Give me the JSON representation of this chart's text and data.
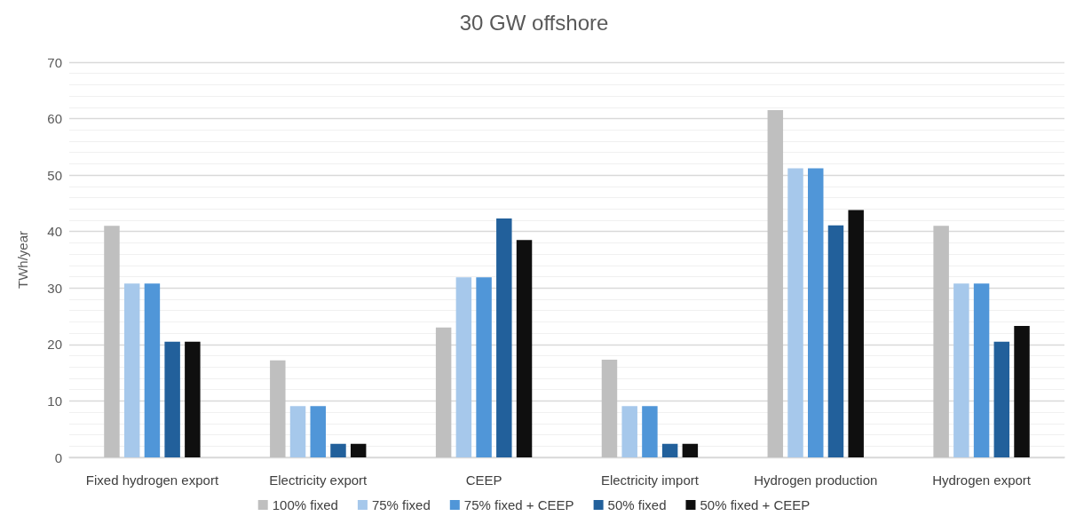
{
  "chart_data": {
    "type": "bar",
    "title": "30 GW offshore",
    "ylabel": "TWh/year",
    "categories": [
      "Fixed hydrogen export",
      "Electricity export",
      "CEEP",
      "Electricity import",
      "Hydrogen production",
      "Hydrogen export"
    ],
    "series": [
      {
        "name": "100% fixed",
        "color": "#bfbfbf",
        "values": [
          41,
          17.2,
          23,
          17.3,
          61.5,
          41
        ]
      },
      {
        "name": "75% fixed",
        "color": "#a6c8eb",
        "values": [
          30.8,
          9.1,
          31.9,
          9.1,
          51.2,
          30.8
        ]
      },
      {
        "name": "75% fixed + CEEP",
        "color": "#5096d8",
        "values": [
          30.8,
          9.1,
          31.9,
          9.1,
          51.2,
          30.8
        ]
      },
      {
        "name": "50% fixed",
        "color": "#22609b",
        "values": [
          20.5,
          2.4,
          42.3,
          2.4,
          41.1,
          20.5
        ]
      },
      {
        "name": "50% fixed + CEEP",
        "color": "#0f0f0f",
        "values": [
          20.5,
          2.4,
          38.5,
          2.4,
          43.8,
          23.3
        ]
      }
    ],
    "ylim": [
      0,
      70
    ],
    "yticks": [
      0,
      {
        "value": 2,
        "label": null
      },
      {
        "value": 4,
        "label": null
      },
      {
        "value": 6,
        "label": null
      },
      {
        "value": 8,
        "label": null
      },
      10,
      {
        "value": 12,
        "label": null
      },
      {
        "value": 14,
        "label": null
      },
      {
        "value": 16,
        "label": null
      },
      {
        "value": 18,
        "label": null
      },
      20,
      {
        "value": 22,
        "label": null
      },
      {
        "value": 24,
        "label": null
      },
      {
        "value": 26,
        "label": null
      },
      {
        "value": 28,
        "label": null
      },
      30,
      {
        "value": 32,
        "label": null
      },
      {
        "value": 34,
        "label": null
      },
      {
        "value": 36,
        "label": null
      },
      {
        "value": 38,
        "label": null
      },
      40,
      {
        "value": 42,
        "label": null
      },
      {
        "value": 44,
        "label": null
      },
      {
        "value": 46,
        "label": null
      },
      {
        "value": 48,
        "label": null
      },
      50,
      {
        "value": 52,
        "label": null
      },
      {
        "value": 54,
        "label": null
      },
      {
        "value": 56,
        "label": null
      },
      {
        "value": 58,
        "label": null
      },
      60,
      {
        "value": 62,
        "label": null
      },
      {
        "value": 64,
        "label": null
      },
      {
        "value": 66,
        "label": null
      },
      {
        "value": 68,
        "label": null
      },
      70
    ],
    "grid": true,
    "legend": "bottom"
  }
}
